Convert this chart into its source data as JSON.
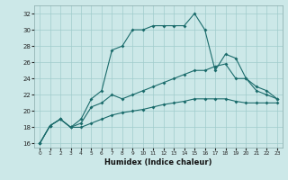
{
  "xlabel": "Humidex (Indice chaleur)",
  "xlim": [
    -0.5,
    23.5
  ],
  "ylim": [
    15.5,
    33.0
  ],
  "xticks": [
    0,
    1,
    2,
    3,
    4,
    5,
    6,
    7,
    8,
    9,
    10,
    11,
    12,
    13,
    14,
    15,
    16,
    17,
    18,
    19,
    20,
    21,
    22,
    23
  ],
  "yticks": [
    16,
    18,
    20,
    22,
    24,
    26,
    28,
    30,
    32
  ],
  "bg_color": "#cce8e8",
  "grid_color": "#a0cccc",
  "line_color": "#1a6b6b",
  "line1_x": [
    0,
    1,
    2,
    3,
    4,
    5,
    6,
    7,
    8,
    9,
    10,
    11,
    12,
    13,
    14,
    15,
    16,
    17,
    18,
    19,
    20,
    21,
    22,
    23
  ],
  "line1_y": [
    16.0,
    18.2,
    19.0,
    18.0,
    18.0,
    18.5,
    19.0,
    19.5,
    19.8,
    20.0,
    20.2,
    20.5,
    20.8,
    21.0,
    21.2,
    21.5,
    21.5,
    21.5,
    21.5,
    21.2,
    21.0,
    21.0,
    21.0,
    21.0
  ],
  "line2_x": [
    0,
    1,
    2,
    3,
    4,
    5,
    6,
    7,
    8,
    9,
    10,
    11,
    12,
    13,
    14,
    15,
    16,
    17,
    18,
    19,
    20,
    21,
    22,
    23
  ],
  "line2_y": [
    16.0,
    18.2,
    19.0,
    18.0,
    18.5,
    20.5,
    21.0,
    22.0,
    21.5,
    22.0,
    22.5,
    23.0,
    23.5,
    24.0,
    24.5,
    25.0,
    25.0,
    25.5,
    25.8,
    24.0,
    24.0,
    22.5,
    22.0,
    21.5
  ],
  "line3_x": [
    0,
    1,
    2,
    3,
    4,
    5,
    6,
    7,
    8,
    9,
    10,
    11,
    12,
    13,
    14,
    15,
    16,
    17,
    18,
    19,
    20,
    21,
    22,
    23
  ],
  "line3_y": [
    16.0,
    18.2,
    19.0,
    18.0,
    19.0,
    21.5,
    22.5,
    27.5,
    28.0,
    30.0,
    30.0,
    30.5,
    30.5,
    30.5,
    30.5,
    32.0,
    30.0,
    25.0,
    27.0,
    26.5,
    24.0,
    23.0,
    22.5,
    21.5
  ]
}
